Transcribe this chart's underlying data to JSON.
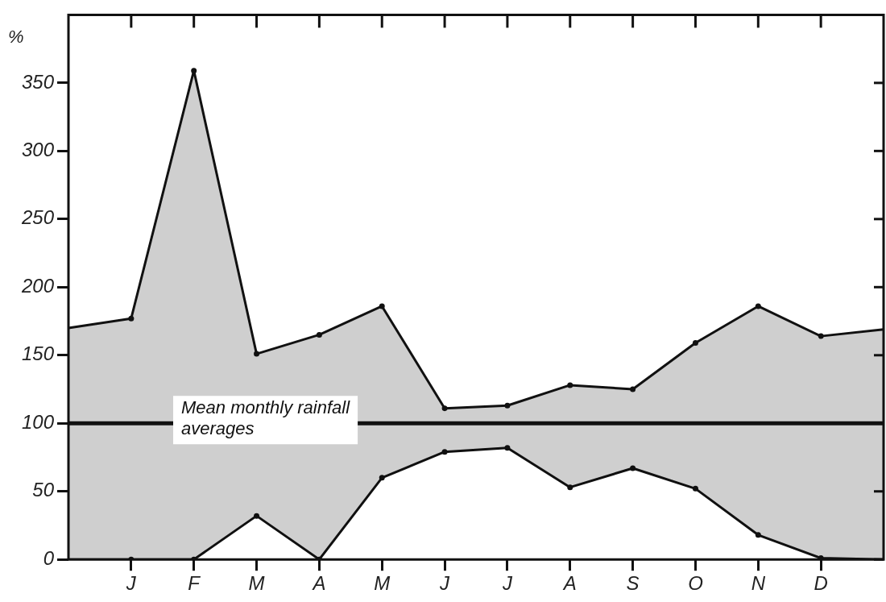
{
  "chart_data": {
    "type": "area",
    "ylabel": "%",
    "categories": [
      null,
      "J",
      "F",
      "M",
      "A",
      "M",
      "J",
      "J",
      "A",
      "S",
      "O",
      "N",
      "D",
      null
    ],
    "series": [
      {
        "color": "#111111",
        "values": [
          170,
          177,
          359,
          151,
          165,
          186,
          111,
          113,
          128,
          125,
          159,
          186,
          164,
          169
        ]
      },
      {
        "type": "line",
        "color": "#111111",
        "values": [
          0,
          0,
          0,
          32,
          0,
          60,
          79,
          82,
          53,
          67,
          52,
          18,
          1,
          0
        ]
      }
    ],
    "ylim": [
      0,
      400
    ],
    "yticks": [
      0,
      50,
      100,
      150,
      200,
      250,
      300,
      350
    ],
    "ref_lines": [
      {
        "axis": "y",
        "value": 100,
        "label": "Mean monthly rainfall averages",
        "color": "#111111"
      }
    ],
    "marker": "circle",
    "grid": false,
    "legend": false
  }
}
